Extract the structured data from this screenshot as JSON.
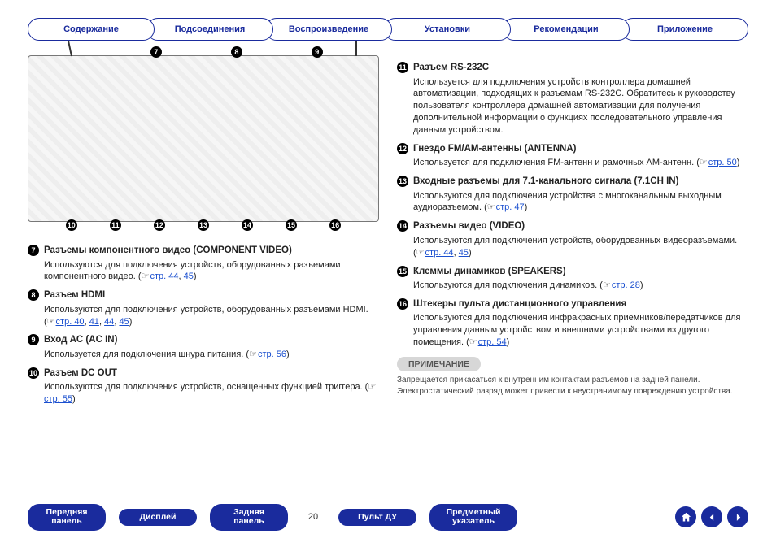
{
  "colors": {
    "brand": "#1a2b9d",
    "link": "#1a4fcf",
    "text": "#222222",
    "note_bg": "#d7d7d7",
    "note_text": "#555555",
    "page_bg": "#ffffff"
  },
  "top_tabs": [
    "Содержание",
    "Подсоединения",
    "Воспроизведение",
    "Установки",
    "Рекомендации",
    "Приложение"
  ],
  "diagram": {
    "top_callouts": [
      "7",
      "8",
      "9"
    ],
    "bottom_callouts": [
      "10",
      "11",
      "12",
      "13",
      "14",
      "15",
      "16"
    ]
  },
  "left_items": [
    {
      "n": "7",
      "title": "Разъемы компонентного видео (COMPONENT VIDEO)",
      "body": "Используются для подключения устройств, оборудованных разъемами компонентного видео.",
      "page_refs": [
        "стр. 44",
        "45"
      ]
    },
    {
      "n": "8",
      "title": "Разъем HDMI",
      "body": "Используются для подключения устройств, оборудованных разъемами HDMI.",
      "page_refs": [
        "стр. 40",
        "41",
        "44",
        "45"
      ]
    },
    {
      "n": "9",
      "title": "Вход AC (AC IN)",
      "body": "Используется для подключения шнура питания.",
      "page_refs": [
        "стр. 56"
      ]
    },
    {
      "n": "10",
      "title": "Разъем DC OUT",
      "body": "Используются для подключения устройств, оснащенных функцией триггера.",
      "page_refs": [
        "стр. 55"
      ]
    }
  ],
  "right_items": [
    {
      "n": "11",
      "title": "Разъем RS-232C",
      "body": "Используется для подключения устройств контроллера домашней автоматизации, подходящих к разъемам RS-232C. Обратитесь к руководству пользователя контроллера домашней автоматизации для получения дополнительной информации о функциях последовательного управления данным устройством.",
      "page_refs": []
    },
    {
      "n": "12",
      "title": "Гнездо FM/AM-антенны (ANTENNA)",
      "body": "Используется для подключения FM-антенн и рамочных АМ-антенн.",
      "page_refs": [
        "стр. 50"
      ]
    },
    {
      "n": "13",
      "title": "Входные разъемы для 7.1-канального сигнала (7.1CH IN)",
      "body": "Используются для подключения устройства с многоканальным выходным аудиоразъемом.",
      "page_refs": [
        "стр. 47"
      ]
    },
    {
      "n": "14",
      "title": "Разъемы видео (VIDEO)",
      "body": "Используются для подключения устройств, оборудованных видеоразъемами.",
      "page_refs": [
        "стр. 44",
        "45"
      ]
    },
    {
      "n": "15",
      "title": "Клеммы динамиков (SPEAKERS)",
      "body": "Используются для подключения динамиков.",
      "page_refs": [
        "стр. 28"
      ]
    },
    {
      "n": "16",
      "title": "Штекеры пульта дистанционного управления",
      "body": "Используются для подключения инфракрасных приемников/передатчиков для управления данным устройством и внешними устройствами из другого помещения.",
      "page_refs": [
        "стр. 54"
      ]
    }
  ],
  "note": {
    "label": "ПРИМЕЧАНИЕ",
    "text": "Запрещается прикасаться к внутренним контактам разъемов на задней панели. Электростатический разряд может привести к неустранимому повреждению устройства."
  },
  "bottom": {
    "buttons": [
      "Передняя\nпанель",
      "Дисплей",
      "Задняя\nпанель",
      "Пульт ДУ",
      "Предметный\nуказатель"
    ],
    "page_number": "20"
  }
}
